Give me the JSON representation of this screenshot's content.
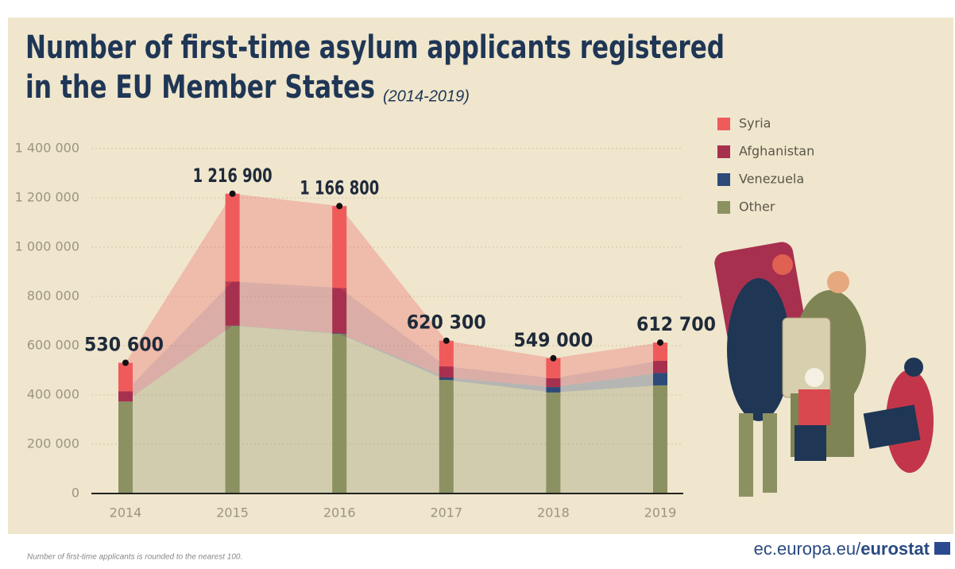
{
  "chart_data": {
    "type": "stacked-bar-area",
    "title": "Number of first-time asylum applicants registered",
    "title_line2": "in the EU Member States",
    "subtitle": "(2014-2019)",
    "categories": [
      "2014",
      "2015",
      "2016",
      "2017",
      "2018",
      "2019"
    ],
    "series": [
      {
        "name": "Other",
        "color": "#8c9162",
        "values": [
          373000,
          681000,
          648000,
          461000,
          410000,
          439000
        ]
      },
      {
        "name": "Venezuela",
        "color": "#2e4a78",
        "values": [
          500,
          800,
          3000,
          10000,
          22000,
          51000
        ]
      },
      {
        "name": "Afghanistan",
        "color": "#a8304f",
        "values": [
          41000,
          179100,
          184000,
          45000,
          36000,
          49000
        ]
      },
      {
        "name": "Syria",
        "color": "#ef5b5b",
        "values": [
          116100,
          356000,
          331800,
          104300,
          81000,
          73700
        ]
      }
    ],
    "totals": [
      530600,
      1216900,
      1166800,
      620300,
      549000,
      612700
    ],
    "total_labels": [
      "530 600",
      "1 216 900",
      "1 166 800",
      "620 300",
      "549 000",
      "612 700"
    ],
    "ylim": [
      0,
      1400000
    ],
    "yticks": [
      0,
      {
        "value": 200000,
        "label": "200 000"
      },
      {
        "value": 400000,
        "label": "400 000"
      },
      {
        "value": 600000,
        "label": "600 000"
      },
      {
        "value": 800000,
        "label": "800 000"
      },
      {
        "value": 1000000,
        "label": "1 000 000"
      },
      {
        "value": 1200000,
        "label": "1 200 000"
      },
      {
        "value": 1400000,
        "label": "1 400 000"
      }
    ],
    "grid": true,
    "legend": "top-right"
  },
  "footer": {
    "note": "Number of first-time applicants is rounded  to the nearest 100.",
    "site": "ec.europa.eu/",
    "brand": "eurostat"
  }
}
